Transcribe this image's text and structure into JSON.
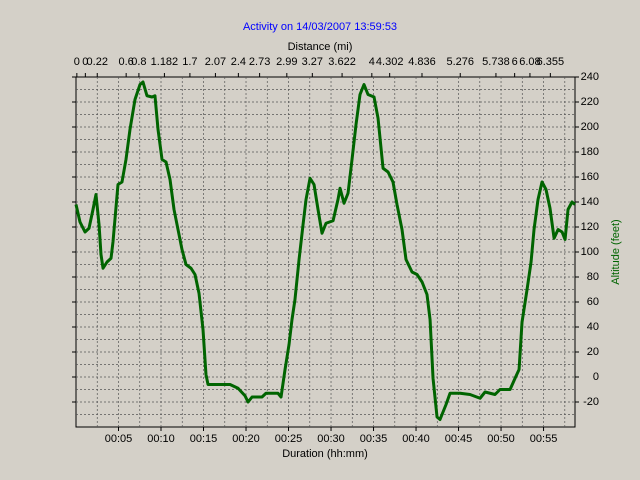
{
  "chart_data": {
    "type": "line",
    "title": "Activity on 14/03/2007 13:59:53",
    "x2_label": "Distance (mi)",
    "x_label": "Duration (hh:mm)",
    "y_label": "Altitude (feet)",
    "xlim": [
      0,
      58.7
    ],
    "ylim": [
      -40,
      240
    ],
    "xticks": [
      {
        "value": 5,
        "label": "00:05"
      },
      {
        "value": 10,
        "label": "00:10"
      },
      {
        "value": 15,
        "label": "00:15"
      },
      {
        "value": 20,
        "label": "00:20"
      },
      {
        "value": 25,
        "label": "00:25"
      },
      {
        "value": 30,
        "label": "00:30"
      },
      {
        "value": 35,
        "label": "00:35"
      },
      {
        "value": 40,
        "label": "00:40"
      },
      {
        "value": 45,
        "label": "00:45"
      },
      {
        "value": 50,
        "label": "00:50"
      },
      {
        "value": 55,
        "label": "00:55"
      }
    ],
    "x2ticks": [
      {
        "value": 0.1,
        "label": "0"
      },
      {
        "value": 1.1,
        "label": "0"
      },
      {
        "value": 2.5,
        "label": "0.22"
      },
      {
        "value": 5.9,
        "label": "0.6"
      },
      {
        "value": 7.4,
        "label": "0.8"
      },
      {
        "value": 10.4,
        "label": "1.182"
      },
      {
        "value": 13.4,
        "label": "1.7"
      },
      {
        "value": 16.4,
        "label": "2.07"
      },
      {
        "value": 19.1,
        "label": "2.4"
      },
      {
        "value": 21.6,
        "label": "2.73"
      },
      {
        "value": 24.8,
        "label": "2.99"
      },
      {
        "value": 27.8,
        "label": "3.27"
      },
      {
        "value": 31.3,
        "label": "3.622"
      },
      {
        "value": 34.8,
        "label": "4"
      },
      {
        "value": 36.9,
        "label": "4.302"
      },
      {
        "value": 40.7,
        "label": "4.836"
      },
      {
        "value": 45.2,
        "label": "5.276"
      },
      {
        "value": 49.4,
        "label": "5.738"
      },
      {
        "value": 51.6,
        "label": "6"
      },
      {
        "value": 53.4,
        "label": "6.08"
      },
      {
        "value": 55.8,
        "label": "6.355"
      }
    ],
    "yticks": [
      -20,
      0,
      20,
      40,
      60,
      80,
      100,
      120,
      140,
      160,
      180,
      200,
      220,
      240
    ],
    "grid": true,
    "grid_step_x": 2.5,
    "grid_step_y": 10,
    "series": [
      {
        "name": "Altitude",
        "color": "#006400",
        "x": [
          0,
          0.47,
          1.06,
          1.53,
          2.0,
          2.35,
          2.71,
          2.94,
          3.18,
          3.65,
          4.12,
          4.35,
          4.94,
          5.41,
          5.88,
          6.35,
          6.94,
          7.53,
          7.88,
          8.35,
          8.94,
          9.29,
          9.65,
          10.12,
          10.59,
          11.06,
          11.53,
          12.0,
          12.47,
          12.94,
          13.53,
          14.0,
          14.47,
          14.94,
          15.29,
          15.53,
          16.35,
          18.12,
          19.06,
          19.88,
          20.24,
          20.71,
          21.88,
          22.35,
          23.76,
          24.12,
          24.59,
          25.06,
          25.41,
          25.76,
          26.24,
          26.71,
          27.06,
          27.53,
          28.0,
          28.47,
          28.94,
          29.41,
          30.24,
          30.82,
          31.06,
          31.53,
          32.0,
          32.47,
          32.94,
          33.41,
          33.88,
          34.35,
          35.06,
          35.53,
          36.12,
          36.71,
          37.29,
          37.76,
          38.35,
          38.82,
          39.53,
          40.12,
          40.71,
          41.29,
          41.65,
          42.0,
          42.47,
          42.82,
          43.53,
          44.0,
          45.18,
          46.35,
          47.53,
          48.12,
          48.71,
          49.29,
          49.88,
          51.06,
          51.65,
          52.12,
          52.47,
          53.06,
          53.53,
          53.88,
          54.35,
          54.82,
          55.29,
          55.76,
          56.24,
          56.71,
          57.18,
          57.53,
          57.88,
          58.35,
          58.7
        ],
        "values": [
          138,
          124,
          116,
          119,
          134,
          146,
          122,
          98,
          87,
          92,
          95,
          108,
          154,
          156,
          174,
          198,
          222,
          234,
          236,
          225,
          224,
          225,
          198,
          174,
          172,
          158,
          134,
          118,
          102,
          90,
          87,
          82,
          67,
          38,
          2,
          -6,
          -6,
          -6,
          -9,
          -15,
          -20,
          -16,
          -16,
          -13,
          -13,
          -16,
          6,
          26,
          46,
          62,
          94,
          122,
          142,
          159,
          154,
          134,
          115,
          123,
          125,
          142,
          151,
          139,
          147,
          174,
          202,
          226,
          234,
          226,
          224,
          207,
          167,
          164,
          156,
          138,
          118,
          94,
          84,
          82,
          76,
          66,
          46,
          -1,
          -32,
          -34,
          -22,
          -13,
          -13,
          -14,
          -17,
          -12,
          -13,
          -14,
          -10,
          -10,
          -1,
          6,
          44,
          70,
          92,
          118,
          142,
          156,
          150,
          135,
          111,
          118,
          116,
          110,
          134,
          140,
          138
        ]
      }
    ]
  }
}
